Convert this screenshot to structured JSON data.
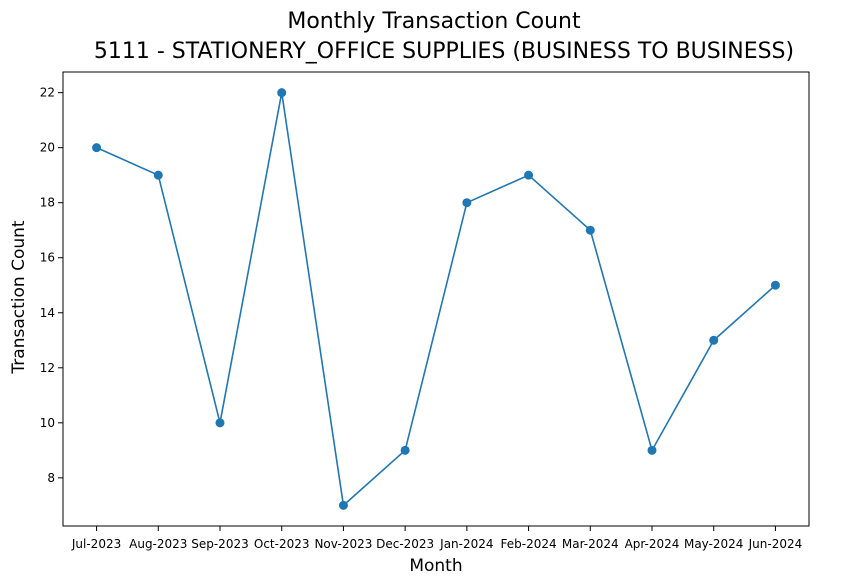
{
  "chart_data": {
    "type": "line",
    "title": "Monthly Transaction Count",
    "subtitle": "5111 - STATIONERY_OFFICE SUPPLIES (BUSINESS TO BUSINESS)",
    "xlabel": "Month",
    "ylabel": "Transaction Count",
    "categories": [
      "Jul-2023",
      "Aug-2023",
      "Sep-2023",
      "Oct-2023",
      "Nov-2023",
      "Dec-2023",
      "Jan-2024",
      "Feb-2024",
      "Mar-2024",
      "Apr-2024",
      "May-2024",
      "Jun-2024"
    ],
    "series": [
      {
        "values": [
          20,
          19,
          10,
          22,
          7,
          9,
          18,
          19,
          17,
          9,
          13,
          15
        ],
        "color": "#1f77b4"
      }
    ],
    "yticks": [
      "8",
      "10",
      "12",
      "14",
      "16",
      "18",
      "20",
      "22"
    ],
    "ylim": [
      6.25,
      22.75
    ],
    "grid": false,
    "legend": "none",
    "marker": "circle"
  }
}
